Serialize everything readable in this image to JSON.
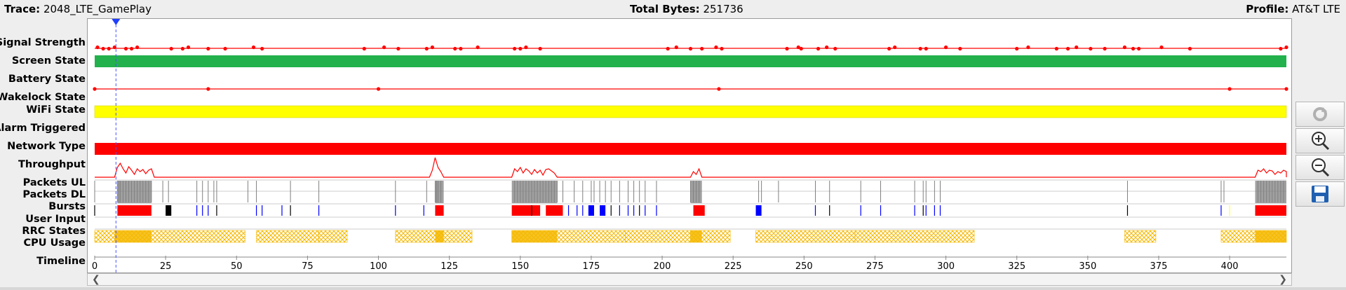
{
  "header": {
    "trace_label": "Trace:",
    "trace_value": "2048_LTE_GamePlay",
    "bytes_label": "Total Bytes:",
    "bytes_value": "251736",
    "profile_label": "Profile:",
    "profile_value": "AT&T LTE"
  },
  "rows": [
    "Signal Strength",
    "Screen State",
    "Battery State",
    "Wakelock State",
    "WiFi State",
    "Alarm Triggered",
    "Network Type",
    "Throughput",
    "Packets UL",
    "Packets DL",
    "Bursts",
    "User Input",
    "RRC States",
    "CPU Usage",
    "Timeline"
  ],
  "timeline": {
    "min": 0,
    "max": 420,
    "ticks": [
      "0",
      "25",
      "50",
      "75",
      "100",
      "125",
      "150",
      "175",
      "200",
      "225",
      "250",
      "275",
      "300",
      "325",
      "350",
      "375",
      "400"
    ],
    "cursor_time": 7.5
  },
  "colors": {
    "signal": "#ff0000",
    "screen": "#22b14c",
    "wifi": "#ffff00",
    "network": "#ff0000",
    "burst_red": "#ff0000",
    "burst_blue": "#0000ff",
    "rrc": "#f5b800",
    "packet": "#808080"
  },
  "scroll": {
    "left_icon": "chevron-left-icon",
    "right_icon": "chevron-right-icon"
  },
  "toolbar": [
    "refresh-icon",
    "zoom-in-icon",
    "zoom-out-icon",
    "save-icon"
  ]
}
